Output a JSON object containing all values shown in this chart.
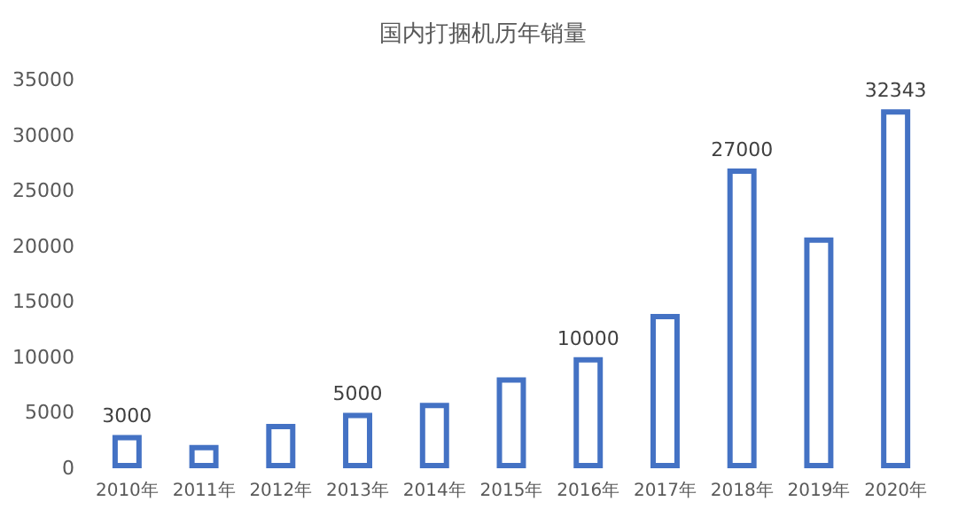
{
  "chart_data": {
    "type": "bar",
    "title": "国内打捆机历年销量",
    "categories": [
      "2010年",
      "2011年",
      "2012年",
      "2013年",
      "2014年",
      "2015年",
      "2016年",
      "2017年",
      "2018年",
      "2019年",
      "2020年"
    ],
    "values": [
      3000,
      2100,
      4000,
      5000,
      5900,
      8200,
      10000,
      13900,
      27000,
      20800,
      32343
    ],
    "value_labels": [
      "3000",
      null,
      null,
      "5000",
      null,
      null,
      "10000",
      null,
      "27000",
      null,
      "32343"
    ],
    "color": "#4472c4",
    "ylim": [
      0,
      35000
    ],
    "yticks": [
      0,
      5000,
      10000,
      15000,
      20000,
      25000,
      30000,
      35000
    ],
    "grid": false
  }
}
